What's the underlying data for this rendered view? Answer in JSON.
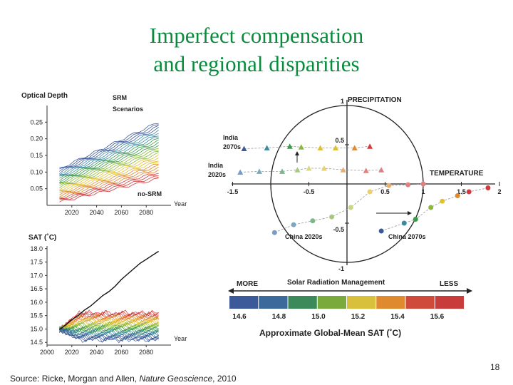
{
  "slide": {
    "title_line1": "Imperfect compensation",
    "title_line2": "and regional disparities",
    "source_prefix": "Source: Ricke, Morgan and Allen, ",
    "source_journal": "Nature Geoscience",
    "source_suffix": ", 2010",
    "page_number": "18"
  },
  "chart_data": [
    {
      "type": "line",
      "ylabel": "Optical Depth",
      "xlabel": "Year",
      "x_ticks": [
        "2020",
        "2040",
        "2060",
        "2080"
      ],
      "y_ticks": [
        "0.05",
        "0.10",
        "0.15",
        "0.20",
        "0.25"
      ],
      "xlim": [
        2000,
        2100
      ],
      "ylim": [
        0,
        0.3
      ],
      "annotations": [
        "SRM",
        "Scenarios",
        "no-SRM"
      ],
      "series_colors": [
        "#d03c3c",
        "#e08a30",
        "#e0c030",
        "#8ab83c",
        "#3c9a4a",
        "#3c8aa0",
        "#3c5a9a"
      ],
      "band": {
        "start_x": 2010,
        "end_x": 2090,
        "start_min": 0.01,
        "start_max": 0.11,
        "end_min": 0.08,
        "end_max": 0.25
      }
    },
    {
      "type": "line",
      "ylabel": "SAT (˚C)",
      "xlabel": "Year",
      "x_ticks": [
        "2000",
        "2020",
        "2040",
        "2060",
        "2080"
      ],
      "y_ticks": [
        "14.5",
        "15.0",
        "15.5",
        "16.0",
        "16.5",
        "17.0",
        "17.5",
        "18.0"
      ],
      "xlim": [
        2000,
        2100
      ],
      "ylim": [
        14.4,
        18.1
      ],
      "series": [
        {
          "color": "#111111",
          "x": [
            2010,
            2015,
            2020,
            2025,
            2030,
            2035,
            2040,
            2045,
            2050,
            2055,
            2060,
            2065,
            2070,
            2075,
            2080,
            2085,
            2090
          ],
          "y": [
            14.98,
            15.15,
            15.35,
            15.5,
            15.7,
            15.85,
            16.05,
            16.25,
            16.4,
            16.6,
            16.85,
            17.05,
            17.25,
            17.45,
            17.6,
            17.75,
            17.9
          ]
        }
      ],
      "ensemble": {
        "colors": [
          "#d03c3c",
          "#e08a30",
          "#e0c030",
          "#8ab83c",
          "#3c9a4a",
          "#3c8aa0",
          "#3c5a9a"
        ],
        "end_min": 14.6,
        "end_max": 15.6
      }
    },
    {
      "type": "scatter",
      "xlabel": "TEMPERATURE",
      "ylabel": "PRECIPITATION",
      "x_ticks": [
        "-1.5",
        "-0.5",
        "0.5",
        "1",
        "1.5",
        "2"
      ],
      "y_ticks": [
        "1",
        "0.5",
        "-0.5",
        "-1"
      ],
      "xlim": [
        -1.55,
        2.05
      ],
      "ylim": [
        -1.1,
        1.15
      ],
      "labels": [
        "India 2070s",
        "India 2020s",
        "China 2020s",
        "China 2070s"
      ],
      "series": [
        {
          "name": "India 2070s",
          "marker": "triangle",
          "x": [
            -1.35,
            -1.05,
            -0.75,
            -0.6,
            -0.35,
            -0.15,
            0.1,
            0.3
          ],
          "y": [
            0.45,
            0.46,
            0.48,
            0.47,
            0.46,
            0.46,
            0.46,
            0.48
          ],
          "colors": [
            "#3c5a9a",
            "#3c8aa0",
            "#3c9a4a",
            "#8ab83c",
            "#e0c030",
            "#e0c030",
            "#e08a30",
            "#d03c3c"
          ]
        },
        {
          "name": "India 2020s",
          "marker": "triangle",
          "x": [
            -1.4,
            -1.15,
            -0.85,
            -0.65,
            -0.5,
            -0.3,
            -0.05,
            0.25,
            0.45
          ],
          "y": [
            0.15,
            0.16,
            0.16,
            0.18,
            0.2,
            0.2,
            0.18,
            0.17,
            0.18
          ],
          "colors": [
            "#7a9ac8",
            "#7aa8c0",
            "#7ab88a",
            "#a8c880",
            "#d8d880",
            "#e8d070",
            "#e8b070",
            "#e08080",
            "#e08080"
          ]
        },
        {
          "name": "China 2020s",
          "marker": "circle",
          "x": [
            -0.95,
            -0.7,
            -0.45,
            -0.2,
            0.05,
            0.3,
            0.55,
            0.8,
            1.0
          ],
          "y": [
            -0.62,
            -0.52,
            -0.47,
            -0.42,
            -0.3,
            -0.1,
            -0.02,
            -0.01,
            0.0
          ],
          "colors": [
            "#7a9ac8",
            "#7aa8c0",
            "#7ab88a",
            "#a8c880",
            "#c8d880",
            "#e8d070",
            "#e8b070",
            "#e08080",
            "#e08080"
          ]
        },
        {
          "name": "China 2070s",
          "marker": "circle",
          "x": [
            0.45,
            0.75,
            0.9,
            1.1,
            1.25,
            1.45,
            1.6,
            1.85
          ],
          "y": [
            -0.6,
            -0.5,
            -0.45,
            -0.3,
            -0.22,
            -0.15,
            -0.1,
            -0.05
          ],
          "colors": [
            "#3c5a9a",
            "#3c8aa0",
            "#3c9a4a",
            "#8ab83c",
            "#e0c030",
            "#e08a30",
            "#d03c3c",
            "#d03c3c"
          ]
        }
      ]
    },
    {
      "type": "table",
      "title": "Solar Radiation Management",
      "left_label": "MORE",
      "right_label": "LESS",
      "ticks": [
        "14.6",
        "14.8",
        "15.0",
        "15.2",
        "15.4",
        "15.6"
      ],
      "colors": [
        "#3c5a9a",
        "#3c6a9a",
        "#3c8a5a",
        "#7aaa3c",
        "#d8c03c",
        "#e08a30",
        "#d04a3c",
        "#c83c3c"
      ],
      "xlabel": "Approximate Global-Mean SAT (˚C)"
    }
  ]
}
